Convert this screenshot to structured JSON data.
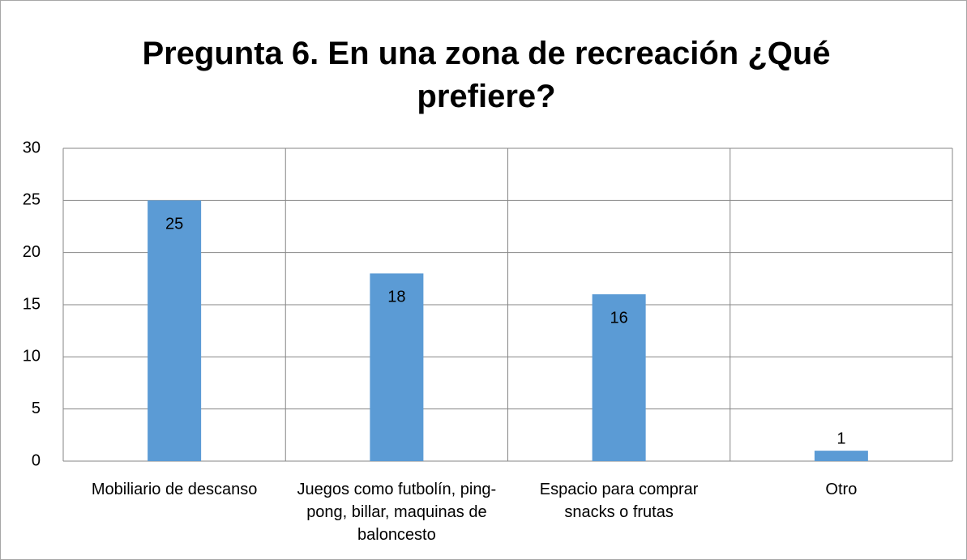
{
  "chart_data": {
    "type": "bar",
    "title": "Pregunta 6. En una zona de recreación ¿Qué prefiere?",
    "categories": [
      "Mobiliario de descanso",
      "Juegos como futbolín, ping-pong, billar, maquinas de baloncesto",
      "Espacio para comprar snacks o frutas",
      "Otro"
    ],
    "values": [
      25,
      18,
      16,
      1
    ],
    "color": "#5b9bd5",
    "ylim": [
      0,
      30
    ],
    "yticks": [
      0,
      5,
      10,
      15,
      20,
      25,
      30
    ],
    "grid": true
  }
}
